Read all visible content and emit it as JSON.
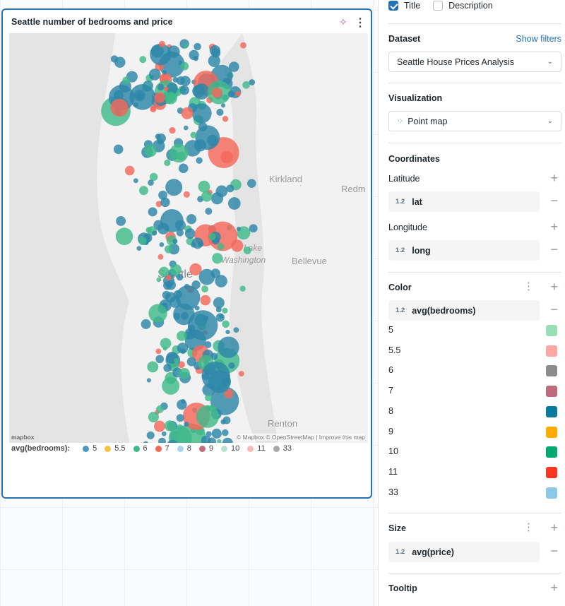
{
  "widget": {
    "title": "Seattle number of bedrooms and price",
    "map_labels": {
      "kirkland": "Kirkland",
      "redmond": "Redm",
      "lake": "Lake",
      "washington": "Washington",
      "bellevue": "Bellevue",
      "seattle": "Seattle",
      "renton": "Renton"
    },
    "attribution": "© Mapbox  © OpenStreetMap | Improve this map",
    "mapbox_logo": "mapbox",
    "legend": {
      "title": "avg(bedrooms):",
      "items": [
        {
          "label": "5",
          "color": "#4b98bd"
        },
        {
          "label": "5.5",
          "color": "#f8c245"
        },
        {
          "label": "6",
          "color": "#3fba8a"
        },
        {
          "label": "7",
          "color": "#f4685a"
        },
        {
          "label": "8",
          "color": "#a9d4ef"
        },
        {
          "label": "9",
          "color": "#c06f80"
        },
        {
          "label": "10",
          "color": "#b6e6cc"
        },
        {
          "label": "11",
          "color": "#f9b9b5"
        },
        {
          "label": "33",
          "color": "#a8a8a8"
        }
      ]
    }
  },
  "panel": {
    "title_checkbox": "Title",
    "description_checkbox": "Description",
    "dataset": {
      "label": "Dataset",
      "show_filters": "Show filters",
      "value": "Seattle House Prices Analysis"
    },
    "visualization": {
      "label": "Visualization",
      "value": "Point map"
    },
    "coordinates": {
      "label": "Coordinates",
      "latitude": "Latitude",
      "lat_type": "1.2",
      "lat_field": "lat",
      "longitude": "Longitude",
      "long_type": "1.2",
      "long_field": "long"
    },
    "color": {
      "label": "Color",
      "type": "1.2",
      "field": "avg(bedrooms)",
      "items": [
        {
          "label": "5",
          "color": "#98dfb7"
        },
        {
          "label": "5.5",
          "color": "#fea6a2"
        },
        {
          "label": "6",
          "color": "#8c8c8c"
        },
        {
          "label": "7",
          "color": "#bd6b7d"
        },
        {
          "label": "8",
          "color": "#077a9d"
        },
        {
          "label": "9",
          "color": "#ffab00"
        },
        {
          "label": "10",
          "color": "#00a972"
        },
        {
          "label": "11",
          "color": "#ff3621"
        },
        {
          "label": "33",
          "color": "#8bcae7"
        }
      ]
    },
    "size": {
      "label": "Size",
      "type": "1.2",
      "field": "avg(price)"
    },
    "tooltip": {
      "label": "Tooltip"
    }
  }
}
